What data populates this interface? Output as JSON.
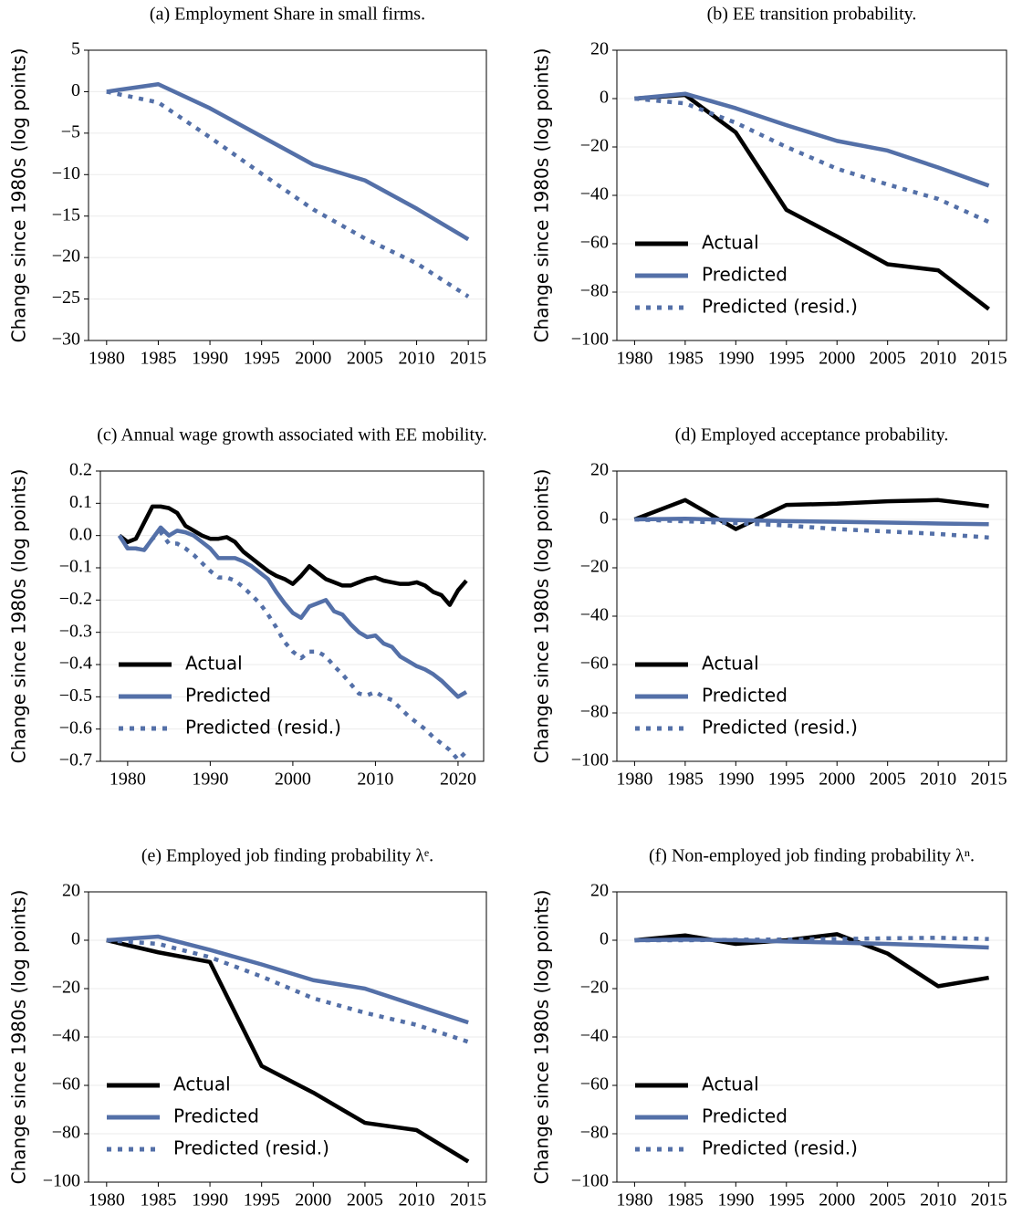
{
  "chart_data": [
    {
      "type": "line",
      "title": "(a) Employment Share in small firms.",
      "ylabel": "Change since 1980s (log points)",
      "x": [
        1980,
        1985,
        1990,
        1995,
        2000,
        2005,
        2010,
        2015
      ],
      "xlim": [
        1978.25,
        2016.75
      ],
      "xticks": [
        1980,
        1985,
        1990,
        1995,
        2000,
        2005,
        2010,
        2015
      ],
      "ylim": [
        -30,
        5
      ],
      "yticks": [
        {
          "value": -30,
          "label": "−30"
        },
        {
          "value": -25,
          "label": "−25"
        },
        {
          "value": -20,
          "label": "−20"
        },
        {
          "value": -15,
          "label": "−15"
        },
        {
          "value": -10,
          "label": "−10"
        },
        {
          "value": -5,
          "label": "−5"
        },
        0,
        5
      ],
      "grid": true,
      "series": [
        {
          "name": "Predicted",
          "color": "#5470a8",
          "dash": "solid",
          "values": [
            0,
            0.9,
            -2,
            -5.4,
            -8.8,
            -10.7,
            -14.1,
            -17.8
          ]
        },
        {
          "name": "Predicted (resid.)",
          "color": "#5470a8",
          "dash": "dotted",
          "values": [
            0,
            -1.3,
            -5.5,
            -9.9,
            -14.2,
            -17.7,
            -20.7,
            -24.7
          ]
        }
      ]
    },
    {
      "type": "line",
      "title": "(b) EE transition probability.",
      "ylabel": "Change since 1980s (log points)",
      "x": [
        1980,
        1985,
        1990,
        1995,
        2000,
        2005,
        2010,
        2015
      ],
      "xlim": [
        1978.25,
        2016.75
      ],
      "xticks": [
        1980,
        1985,
        1990,
        1995,
        2000,
        2005,
        2010,
        2015
      ],
      "ylim": [
        -100,
        20
      ],
      "yticks": [
        {
          "value": -100,
          "label": "−100"
        },
        {
          "value": -80,
          "label": "−80"
        },
        {
          "value": -60,
          "label": "−60"
        },
        {
          "value": -40,
          "label": "−40"
        },
        {
          "value": -20,
          "label": "−20"
        },
        0,
        20
      ],
      "grid": true,
      "legend": "lower left",
      "series": [
        {
          "name": "Actual",
          "color": "#000000",
          "dash": "solid",
          "values": [
            0,
            1.5,
            -14,
            -46,
            -57,
            -68.5,
            -71,
            -87
          ]
        },
        {
          "name": "Predicted",
          "color": "#5470a8",
          "dash": "solid",
          "values": [
            0,
            2,
            -4,
            -11,
            -17.5,
            -21.5,
            -28.5,
            -36
          ]
        },
        {
          "name": "Predicted (resid.)",
          "color": "#5470a8",
          "dash": "dotted",
          "values": [
            0,
            -2,
            -10,
            -20,
            -29,
            -35.5,
            -41.5,
            -51
          ]
        }
      ]
    },
    {
      "type": "line",
      "title": "(c) Annual wage growth associated with EE mobility.",
      "ylabel": "Change since 1980s (log points)",
      "x": [
        1979,
        1980,
        1981,
        1982,
        1983,
        1984,
        1985,
        1986,
        1987,
        1988,
        1989,
        1990,
        1991,
        1992,
        1993,
        1994,
        1995,
        1996,
        1997,
        1998,
        1999,
        2000,
        2001,
        2002,
        2003,
        2004,
        2005,
        2006,
        2007,
        2008,
        2009,
        2010,
        2011,
        2012,
        2013,
        2014,
        2015,
        2016,
        2017,
        2018,
        2019,
        2020,
        2021
      ],
      "xlim": [
        1976.7,
        2023.1
      ],
      "xticks": [
        1980,
        1990,
        2000,
        2010,
        2020
      ],
      "ylim": [
        -0.7,
        0.2
      ],
      "yticks": [
        {
          "value": -0.7,
          "label": "−0.7"
        },
        {
          "value": -0.6,
          "label": "−0.6"
        },
        {
          "value": -0.5,
          "label": "−0.5"
        },
        {
          "value": -0.4,
          "label": "−0.4"
        },
        {
          "value": -0.3,
          "label": "−0.3"
        },
        {
          "value": -0.2,
          "label": "−0.2"
        },
        {
          "value": -0.1,
          "label": "−0.1"
        },
        {
          "value": 0,
          "label": "0.0"
        },
        0.1,
        0.2
      ],
      "grid": true,
      "legend": "lower left",
      "series": [
        {
          "name": "Actual",
          "color": "#000000",
          "dash": "solid",
          "values": [
            0,
            -0.02,
            -0.01,
            0.04,
            0.09,
            0.09,
            0.085,
            0.07,
            0.03,
            0.015,
            0,
            -0.01,
            -0.01,
            -0.005,
            -0.02,
            -0.05,
            -0.07,
            -0.09,
            -0.11,
            -0.125,
            -0.135,
            -0.15,
            -0.125,
            -0.095,
            -0.115,
            -0.135,
            -0.145,
            -0.155,
            -0.155,
            -0.145,
            -0.135,
            -0.13,
            -0.14,
            -0.145,
            -0.15,
            -0.15,
            -0.145,
            -0.155,
            -0.175,
            -0.185,
            -0.215,
            -0.17,
            -0.14
          ]
        },
        {
          "name": "Predicted",
          "color": "#5470a8",
          "dash": "solid",
          "values": [
            0,
            -0.04,
            -0.04,
            -0.045,
            -0.01,
            0.025,
            0,
            0.015,
            0.01,
            0,
            -0.02,
            -0.04,
            -0.07,
            -0.07,
            -0.07,
            -0.08,
            -0.095,
            -0.115,
            -0.135,
            -0.175,
            -0.21,
            -0.24,
            -0.255,
            -0.22,
            -0.21,
            -0.2,
            -0.235,
            -0.245,
            -0.275,
            -0.3,
            -0.315,
            -0.31,
            -0.335,
            -0.345,
            -0.375,
            -0.39,
            -0.405,
            -0.415,
            -0.43,
            -0.45,
            -0.475,
            -0.5,
            -0.485
          ]
        },
        {
          "name": "Predicted (resid.)",
          "color": "#5470a8",
          "dash": "dotted",
          "values": [
            0,
            -0.04,
            -0.04,
            -0.045,
            -0.01,
            0.01,
            -0.025,
            -0.025,
            -0.04,
            -0.06,
            -0.085,
            -0.11,
            -0.13,
            -0.13,
            -0.14,
            -0.16,
            -0.185,
            -0.21,
            -0.245,
            -0.285,
            -0.33,
            -0.36,
            -0.38,
            -0.36,
            -0.36,
            -0.375,
            -0.405,
            -0.43,
            -0.46,
            -0.49,
            -0.495,
            -0.485,
            -0.5,
            -0.51,
            -0.535,
            -0.56,
            -0.58,
            -0.6,
            -0.625,
            -0.645,
            -0.665,
            -0.695,
            -0.67
          ]
        }
      ]
    },
    {
      "type": "line",
      "title": "(d) Employed acceptance probability.",
      "ylabel": "Change since 1980s (log points)",
      "x": [
        1980,
        1985,
        1990,
        1995,
        2000,
        2005,
        2010,
        2015
      ],
      "xlim": [
        1978.25,
        2016.75
      ],
      "xticks": [
        1980,
        1985,
        1990,
        1995,
        2000,
        2005,
        2010,
        2015
      ],
      "ylim": [
        -100,
        20
      ],
      "yticks": [
        {
          "value": -100,
          "label": "−100"
        },
        {
          "value": -80,
          "label": "−80"
        },
        {
          "value": -60,
          "label": "−60"
        },
        {
          "value": -40,
          "label": "−40"
        },
        {
          "value": -20,
          "label": "−20"
        },
        0,
        20
      ],
      "grid": true,
      "legend": "lower left",
      "series": [
        {
          "name": "Actual",
          "color": "#000000",
          "dash": "solid",
          "values": [
            0,
            8,
            -4,
            6,
            6.5,
            7.5,
            8,
            5.5
          ]
        },
        {
          "name": "Predicted",
          "color": "#5470a8",
          "dash": "solid",
          "values": [
            0,
            0.3,
            -0.3,
            -0.7,
            -1,
            -1.3,
            -1.7,
            -2
          ]
        },
        {
          "name": "Predicted (resid.)",
          "color": "#5470a8",
          "dash": "dotted",
          "values": [
            0,
            -0.8,
            -1.5,
            -2.5,
            -4,
            -5,
            -6,
            -7.5
          ]
        }
      ]
    },
    {
      "type": "line",
      "title": "(e) Employed job finding probability λᵉ.",
      "ylabel": "Change since 1980s (log points)",
      "x": [
        1980,
        1985,
        1990,
        1995,
        2000,
        2005,
        2010,
        2015
      ],
      "xlim": [
        1978.25,
        2016.75
      ],
      "xticks": [
        1980,
        1985,
        1990,
        1995,
        2000,
        2005,
        2010,
        2015
      ],
      "ylim": [
        -100,
        20
      ],
      "yticks": [
        {
          "value": -100,
          "label": "−100"
        },
        {
          "value": -80,
          "label": "−80"
        },
        {
          "value": -60,
          "label": "−60"
        },
        {
          "value": -40,
          "label": "−40"
        },
        {
          "value": -20,
          "label": "−20"
        },
        0,
        20
      ],
      "grid": true,
      "legend": "lower left",
      "series": [
        {
          "name": "Actual",
          "color": "#000000",
          "dash": "solid",
          "values": [
            0,
            -5,
            -9,
            -52,
            -63,
            -75.5,
            -78.5,
            -91.5
          ]
        },
        {
          "name": "Predicted",
          "color": "#5470a8",
          "dash": "solid",
          "values": [
            0,
            1.5,
            -4,
            -10,
            -16.5,
            -20,
            -27,
            -34
          ]
        },
        {
          "name": "Predicted (resid.)",
          "color": "#5470a8",
          "dash": "dotted",
          "values": [
            0,
            -1.5,
            -7,
            -15,
            -24,
            -30,
            -35,
            -42
          ]
        }
      ]
    },
    {
      "type": "line",
      "title": "(f) Non-employed job finding probability λⁿ.",
      "ylabel": "Change since 1980s (log points)",
      "x": [
        1980,
        1985,
        1990,
        1995,
        2000,
        2005,
        2010,
        2015
      ],
      "xlim": [
        1978.25,
        2016.75
      ],
      "xticks": [
        1980,
        1985,
        1990,
        1995,
        2000,
        2005,
        2010,
        2015
      ],
      "ylim": [
        -100,
        20
      ],
      "yticks": [
        {
          "value": -100,
          "label": "−100"
        },
        {
          "value": -80,
          "label": "−80"
        },
        {
          "value": -60,
          "label": "−60"
        },
        {
          "value": -40,
          "label": "−40"
        },
        {
          "value": -20,
          "label": "−20"
        },
        0,
        20
      ],
      "grid": true,
      "legend": "lower left",
      "series": [
        {
          "name": "Actual",
          "color": "#000000",
          "dash": "solid",
          "values": [
            0,
            2,
            -1.5,
            0,
            2.5,
            -5.5,
            -19,
            -15.5
          ]
        },
        {
          "name": "Predicted",
          "color": "#5470a8",
          "dash": "solid",
          "values": [
            0,
            0.3,
            0,
            -0.5,
            -1,
            -1.5,
            -2.2,
            -3
          ]
        },
        {
          "name": "Predicted (resid.)",
          "color": "#5470a8",
          "dash": "dotted",
          "values": [
            0,
            0,
            0.2,
            0.3,
            0.5,
            0.8,
            1,
            0.5
          ]
        }
      ]
    }
  ]
}
